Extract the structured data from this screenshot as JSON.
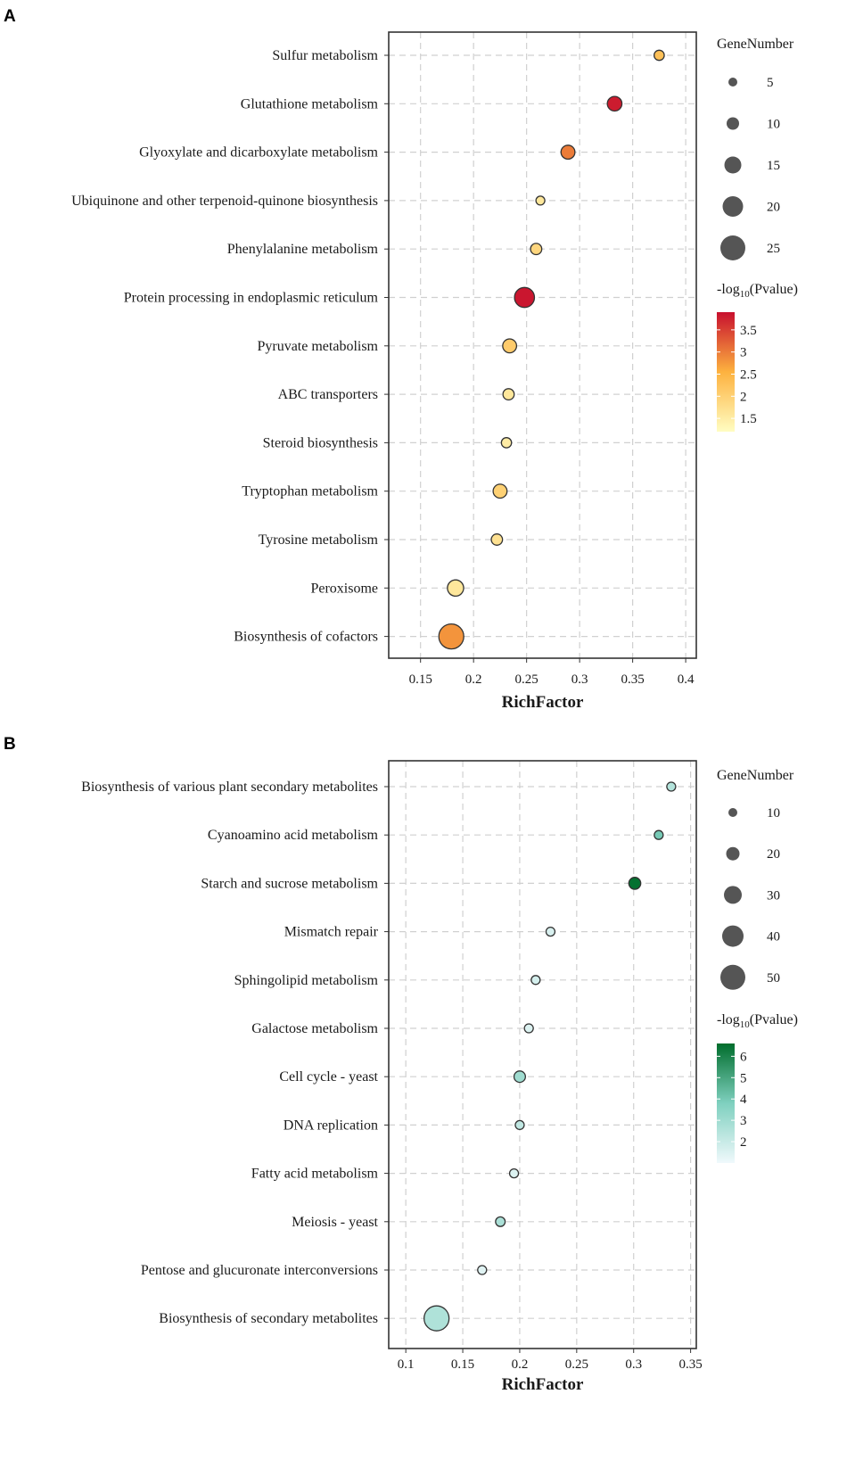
{
  "chart_data": [
    {
      "panel": "A",
      "type": "scatter",
      "xlabel": "RichFactor",
      "xlim": [
        0.12,
        0.41
      ],
      "x_ticks": [
        "0.15",
        "0.2",
        "0.25",
        "0.3",
        "0.35",
        "0.4"
      ],
      "size_legend_title": "GeneNumber",
      "size_legend": [
        "5",
        "10",
        "15",
        "20",
        "25"
      ],
      "color_legend_title_base": "-log",
      "color_legend_title_sub": "10",
      "color_legend_title_rest": "(Pvalue)",
      "color_range": [
        1.2,
        3.9
      ],
      "color_ticks": [
        "3.5",
        "3",
        "2.5",
        "2",
        "1.5"
      ],
      "color_low": "#fffdc2",
      "color_mid": "#fdb23f",
      "color_high": "#c8102e",
      "terms": [
        "Sulfur metabolism",
        "Glutathione metabolism",
        "Glyoxylate and dicarboxylate metabolism",
        "Ubiquinone and other terpenoid-quinone biosynthesis",
        "Phenylalanine metabolism",
        "Protein processing in endoplasmic reticulum",
        "Pyruvate metabolism",
        "ABC transporters",
        "Steroid biosynthesis",
        "Tryptophan metabolism",
        "Tyrosine metabolism",
        "Peroxisome",
        "Biosynthesis of cofactors"
      ],
      "rich_factor": [
        0.375,
        0.333,
        0.289,
        0.263,
        0.259,
        0.248,
        0.234,
        0.233,
        0.231,
        0.225,
        0.222,
        0.183,
        0.179
      ],
      "gene_number": [
        6,
        11,
        10,
        5,
        7,
        19,
        10,
        7,
        6,
        10,
        7,
        13,
        29
      ],
      "neg_log10_p": [
        2.3,
        3.8,
        3.0,
        1.6,
        1.9,
        3.85,
        2.1,
        1.6,
        1.5,
        2.0,
        1.7,
        1.6,
        2.8
      ]
    },
    {
      "panel": "B",
      "type": "scatter",
      "xlabel": "RichFactor",
      "xlim": [
        0.085,
        0.355
      ],
      "x_ticks": [
        "0.1",
        "0.15",
        "0.2",
        "0.25",
        "0.3",
        "0.35"
      ],
      "size_legend_title": "GeneNumber",
      "size_legend": [
        "10",
        "20",
        "30",
        "40",
        "50"
      ],
      "color_legend_title_base": "-log",
      "color_legend_title_sub": "10",
      "color_legend_title_rest": "(Pvalue)",
      "color_range": [
        1.0,
        6.6
      ],
      "color_ticks": [
        "6",
        "5",
        "4",
        "3",
        "2"
      ],
      "color_low": "#f0f9fc",
      "color_mid": "#7fd0bf",
      "color_high": "#006d2c",
      "terms": [
        "Biosynthesis of various plant secondary metabolites",
        "Cyanoamino acid metabolism",
        "Starch and sucrose metabolism",
        "Mismatch repair",
        "Sphingolipid metabolism",
        "Galactose metabolism",
        "Cell cycle - yeast",
        "DNA replication",
        "Fatty acid metabolism",
        "Meiosis - yeast",
        "Pentose and glucuronate interconversions",
        "Biosynthesis of secondary metabolites"
      ],
      "rich_factor": [
        0.333,
        0.322,
        0.301,
        0.227,
        0.214,
        0.208,
        0.2,
        0.2,
        0.195,
        0.183,
        0.167,
        0.127
      ],
      "gene_number": [
        7,
        9,
        15,
        6,
        7,
        6,
        14,
        8,
        6,
        11,
        6,
        53
      ],
      "neg_log10_p": [
        2.5,
        4.0,
        6.5,
        1.6,
        1.7,
        1.5,
        3.0,
        2.2,
        1.5,
        2.7,
        1.4,
        2.6
      ]
    }
  ]
}
